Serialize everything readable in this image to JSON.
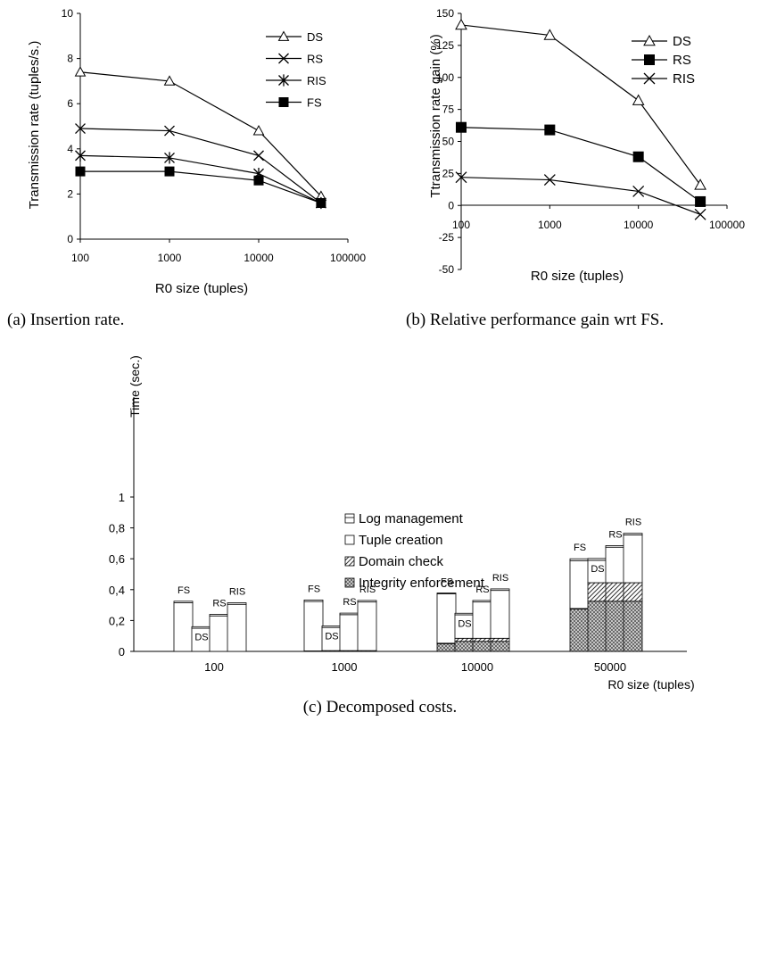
{
  "captions": {
    "a": "(a) Insertion rate.",
    "b": "(b) Relative performance gain wrt FS.",
    "c": "(c) Decomposed costs."
  },
  "chart_data": [
    {
      "id": "a",
      "type": "line",
      "xscale": "log",
      "x": [
        100,
        1000,
        10000,
        50000
      ],
      "xticks": [
        "100",
        "1000",
        "10000",
        "100000"
      ],
      "xlim": [
        100,
        100000
      ],
      "ylim": [
        0,
        10
      ],
      "yticks": [
        "0",
        "2",
        "4",
        "6",
        "8",
        "10"
      ],
      "ytick_values": [
        0,
        2,
        4,
        6,
        8,
        10
      ],
      "xlabel": "R0 size (tuples)",
      "ylabel": "Transmission rate (tuples/s.)",
      "legend": "top-right",
      "series": [
        {
          "name": "DS",
          "marker": "triangle",
          "values": [
            7.4,
            7.0,
            4.8,
            1.9
          ]
        },
        {
          "name": "RS",
          "marker": "x",
          "values": [
            4.9,
            4.8,
            3.7,
            1.6
          ]
        },
        {
          "name": "RIS",
          "marker": "star",
          "values": [
            3.7,
            3.6,
            2.9,
            1.6
          ]
        },
        {
          "name": "FS",
          "marker": "square",
          "values": [
            3.0,
            3.0,
            2.6,
            1.6
          ]
        }
      ]
    },
    {
      "id": "b",
      "type": "line",
      "xscale": "log",
      "x": [
        100,
        1000,
        10000,
        50000
      ],
      "xticks": [
        "100",
        "1000",
        "10000",
        "100000"
      ],
      "xlim": [
        100,
        100000
      ],
      "ylim": [
        -50,
        150
      ],
      "yticks": [
        "-50",
        "-25",
        "0",
        "25",
        "50",
        "75",
        "100",
        "125",
        "150"
      ],
      "ytick_values": [
        -50,
        -25,
        0,
        25,
        50,
        75,
        100,
        125,
        150
      ],
      "xlabel": "R0 size (tuples)",
      "ylabel": "Ttransmission rate gain (%)",
      "legend": "top-right",
      "series": [
        {
          "name": "DS",
          "marker": "triangle",
          "values": [
            141,
            133,
            82,
            16
          ]
        },
        {
          "name": "RS",
          "marker": "square",
          "values": [
            61,
            59,
            38,
            3
          ]
        },
        {
          "name": "RIS",
          "marker": "x",
          "values": [
            22,
            20,
            11,
            -7
          ]
        }
      ]
    },
    {
      "id": "c",
      "type": "bar",
      "stacked": true,
      "categories": [
        "100",
        "1000",
        "10000",
        "50000"
      ],
      "bar_labels": [
        "FS",
        "DS",
        "RS",
        "RIS"
      ],
      "ylim": [
        0,
        1.2
      ],
      "yticks": [
        "0",
        "0,2",
        "0,4",
        "0,6",
        "0,8",
        "1"
      ],
      "ytick_values": [
        0,
        0.2,
        0.4,
        0.6,
        0.8,
        1.0
      ],
      "xlabel": "R0 size (tuples)",
      "ylabel": "Time (sec.)",
      "legend": "top-center",
      "components": [
        "Integrity enforcement",
        "Domain check",
        "Tuple creation",
        "Log management"
      ],
      "legend_order": [
        "Log management",
        "Tuple creation",
        "Domain check",
        "Integrity enforcement"
      ],
      "values": [
        [
          [
            0,
            0,
            0.315,
            0.01
          ],
          [
            0,
            0,
            0.15,
            0.01
          ],
          [
            0,
            0,
            0.23,
            0.01
          ],
          [
            0,
            0,
            0.305,
            0.01
          ]
        ],
        [
          [
            0,
            0.003,
            0.32,
            0.01
          ],
          [
            0,
            0.005,
            0.15,
            0.01
          ],
          [
            0,
            0.005,
            0.233,
            0.01
          ],
          [
            0,
            0.005,
            0.315,
            0.01
          ]
        ],
        [
          [
            0.05,
            0.003,
            0.32,
            0.005
          ],
          [
            0.065,
            0.02,
            0.152,
            0.01
          ],
          [
            0.065,
            0.02,
            0.235,
            0.01
          ],
          [
            0.065,
            0.02,
            0.31,
            0.01
          ]
        ],
        [
          [
            0.275,
            0.003,
            0.31,
            0.012
          ],
          [
            0.325,
            0.12,
            0.145,
            0.012
          ],
          [
            0.325,
            0.12,
            0.23,
            0.01
          ],
          [
            0.325,
            0.12,
            0.31,
            0.01
          ]
        ]
      ]
    }
  ]
}
